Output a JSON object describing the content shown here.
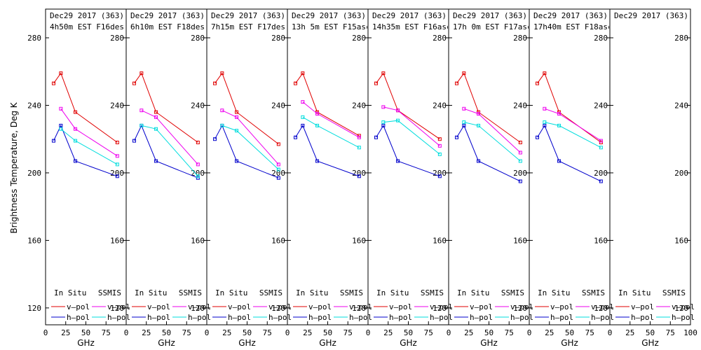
{
  "chart_data": {
    "type": "line",
    "ylabel": "Brightness Temperature, Deg K",
    "xlabel": "GHz",
    "xlim": [
      0,
      100
    ],
    "ylim": [
      110,
      297
    ],
    "x_ticks": [
      0,
      25,
      50,
      75,
      100
    ],
    "y_ticks": [
      120,
      160,
      200,
      240,
      280
    ],
    "x_tick_labels": [
      "0",
      "25",
      "50",
      "75",
      "100"
    ],
    "legend": {
      "col1": "In Situ",
      "col2": "SSMIS",
      "vpol": "v–pol",
      "hpol": "h–pol"
    },
    "colors": {
      "insitu_v": "#e00000",
      "insitu_h": "#0000cc",
      "ssmis_v": "#ee00ee",
      "ssmis_h": "#00dddd"
    },
    "panels": [
      {
        "title": "Dec29 2017 (363)",
        "subtitle": "4h50m EST F16des",
        "series": [
          {
            "name": "In Situ v-pol",
            "x": [
              10,
              19,
              37,
              89
            ],
            "y": [
              253,
              259,
              236,
              218
            ]
          },
          {
            "name": "In Situ h-pol",
            "x": [
              10,
              19,
              37,
              89
            ],
            "y": [
              219,
              228,
              207,
              198
            ]
          },
          {
            "name": "SSMIS v-pol",
            "x": [
              19,
              37,
              89
            ],
            "y": [
              238,
              226,
              210
            ]
          },
          {
            "name": "SSMIS h-pol",
            "x": [
              19,
              37,
              89
            ],
            "y": [
              226,
              219,
              205
            ]
          }
        ]
      },
      {
        "title": "Dec29 2017 (363)",
        "subtitle": "6h10m EST F18des",
        "series": [
          {
            "name": "In Situ v-pol",
            "x": [
              10,
              19,
              37,
              89
            ],
            "y": [
              253,
              259,
              236,
              218
            ]
          },
          {
            "name": "In Situ h-pol",
            "x": [
              10,
              19,
              37,
              89
            ],
            "y": [
              219,
              228,
              207,
              197
            ]
          },
          {
            "name": "SSMIS v-pol",
            "x": [
              19,
              37,
              89
            ],
            "y": [
              237,
              233,
              205
            ]
          },
          {
            "name": "SSMIS h-pol",
            "x": [
              19,
              37,
              89
            ],
            "y": [
              228,
              226,
              198
            ]
          }
        ]
      },
      {
        "title": "Dec29 2017 (363)",
        "subtitle": "7h15m EST F17des",
        "series": [
          {
            "name": "In Situ v-pol",
            "x": [
              10,
              19,
              37,
              89
            ],
            "y": [
              253,
              259,
              236,
              217
            ]
          },
          {
            "name": "In Situ h-pol",
            "x": [
              10,
              19,
              37,
              89
            ],
            "y": [
              220,
              228,
              207,
              197
            ]
          },
          {
            "name": "SSMIS v-pol",
            "x": [
              19,
              37,
              89
            ],
            "y": [
              237,
              233,
              205
            ]
          },
          {
            "name": "SSMIS h-pol",
            "x": [
              19,
              37,
              89
            ],
            "y": [
              228,
              225,
              202
            ]
          }
        ]
      },
      {
        "title": "Dec29 2017 (363)",
        "subtitle": "13h 5m EST F15asc",
        "series": [
          {
            "name": "In Situ v-pol",
            "x": [
              10,
              19,
              37,
              89
            ],
            "y": [
              253,
              259,
              236,
              222
            ]
          },
          {
            "name": "In Situ h-pol",
            "x": [
              10,
              19,
              37,
              89
            ],
            "y": [
              221,
              228,
              207,
              198
            ]
          },
          {
            "name": "SSMIS v-pol",
            "x": [
              19,
              37,
              89
            ],
            "y": [
              242,
              235,
              221
            ]
          },
          {
            "name": "SSMIS h-pol",
            "x": [
              19,
              37,
              89
            ],
            "y": [
              233,
              228,
              215
            ]
          }
        ]
      },
      {
        "title": "Dec29 2017 (363)",
        "subtitle": "14h35m EST F16asc",
        "series": [
          {
            "name": "In Situ v-pol",
            "x": [
              10,
              19,
              37,
              89
            ],
            "y": [
              253,
              259,
              237,
              220
            ]
          },
          {
            "name": "In Situ h-pol",
            "x": [
              10,
              19,
              37,
              89
            ],
            "y": [
              221,
              228,
              207,
              198
            ]
          },
          {
            "name": "SSMIS v-pol",
            "x": [
              19,
              37,
              89
            ],
            "y": [
              239,
              237,
              216
            ]
          },
          {
            "name": "SSMIS h-pol",
            "x": [
              19,
              37,
              89
            ],
            "y": [
              230,
              231,
              211
            ]
          }
        ]
      },
      {
        "title": "Dec29 2017 (363)",
        "subtitle": "17h 0m EST F17asc",
        "series": [
          {
            "name": "In Situ v-pol",
            "x": [
              10,
              19,
              37,
              89
            ],
            "y": [
              253,
              259,
              236,
              218
            ]
          },
          {
            "name": "In Situ h-pol",
            "x": [
              10,
              19,
              37,
              89
            ],
            "y": [
              221,
              228,
              207,
              195
            ]
          },
          {
            "name": "SSMIS v-pol",
            "x": [
              19,
              37,
              89
            ],
            "y": [
              238,
              235,
              212
            ]
          },
          {
            "name": "SSMIS h-pol",
            "x": [
              19,
              37,
              89
            ],
            "y": [
              230,
              228,
              207
            ]
          }
        ]
      },
      {
        "title": "Dec29 2017 (363)",
        "subtitle": "17h40m EST F18asc",
        "series": [
          {
            "name": "In Situ v-pol",
            "x": [
              10,
              19,
              37,
              89
            ],
            "y": [
              253,
              259,
              236,
              218
            ]
          },
          {
            "name": "In Situ h-pol",
            "x": [
              10,
              19,
              37,
              89
            ],
            "y": [
              221,
              228,
              207,
              195
            ]
          },
          {
            "name": "SSMIS v-pol",
            "x": [
              19,
              37,
              89
            ],
            "y": [
              238,
              235,
              219
            ]
          },
          {
            "name": "SSMIS h-pol",
            "x": [
              19,
              37,
              89
            ],
            "y": [
              230,
              228,
              215
            ]
          }
        ]
      },
      {
        "title": "Dec29 2017 (363)",
        "subtitle": "",
        "series": []
      }
    ]
  }
}
